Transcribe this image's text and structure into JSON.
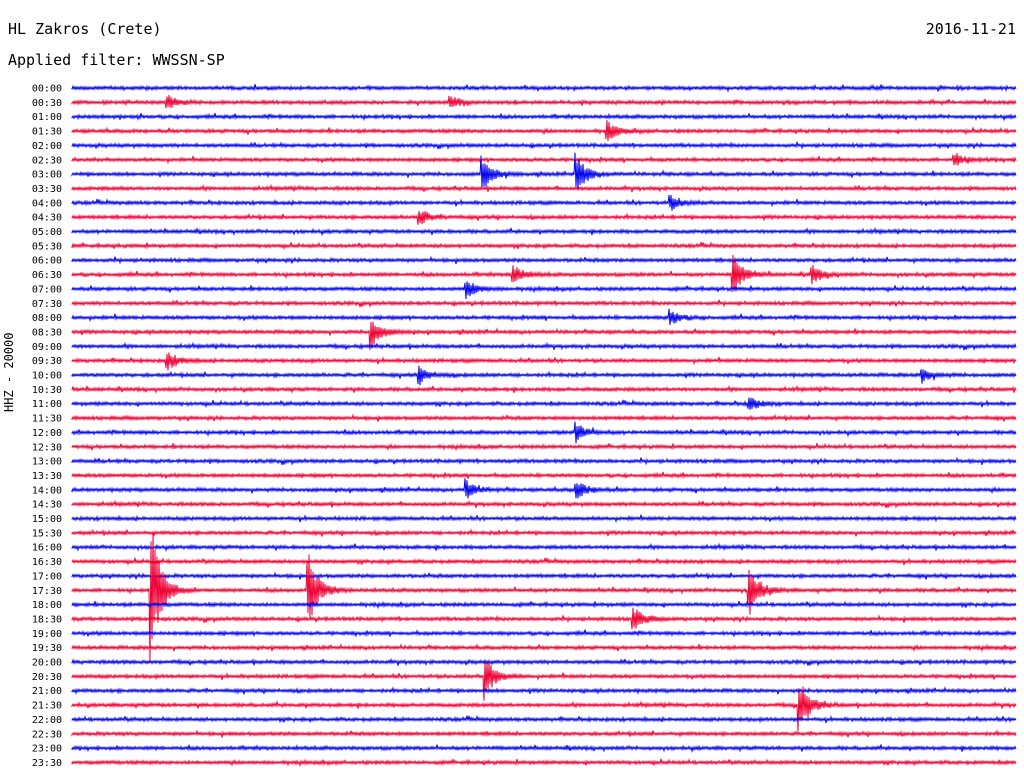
{
  "header": {
    "station": "HL Zakros (Crete)",
    "date": "2016-11-21",
    "filter": "Applied filter: WWSSN-SP"
  },
  "channel_label": "HHZ - 20000",
  "colors": {
    "even_line": "#0000ee",
    "odd_line": "#ee0033",
    "label": "#000000"
  },
  "chart_data": {
    "type": "line",
    "title": "HL Zakros (Crete)",
    "subtitle": "Applied filter: WWSSN-SP",
    "ylabel": "HHZ - 20000",
    "xlabel": "",
    "grid": false,
    "row_labels": [
      "00:00",
      "00:30",
      "01:00",
      "01:30",
      "02:00",
      "02:30",
      "03:00",
      "03:30",
      "04:00",
      "04:30",
      "05:00",
      "05:30",
      "06:00",
      "06:30",
      "07:00",
      "07:30",
      "08:00",
      "08:30",
      "09:00",
      "09:30",
      "10:00",
      "10:30",
      "11:00",
      "11:30",
      "12:00",
      "12:30",
      "13:00",
      "13:30",
      "14:00",
      "14:30",
      "15:00",
      "15:30",
      "16:00",
      "16:30",
      "17:00",
      "17:30",
      "18:00",
      "18:30",
      "19:00",
      "19:30",
      "20:00",
      "20:30",
      "21:00",
      "21:30",
      "22:00",
      "22:30",
      "23:00",
      "23:30"
    ],
    "row_minutes": 30,
    "events": [
      {
        "row": "00:30",
        "minute": 3,
        "amp": 0.6
      },
      {
        "row": "00:30",
        "minute": 12,
        "amp": 0.6
      },
      {
        "row": "01:30",
        "minute": 17,
        "amp": 0.8
      },
      {
        "row": "02:30",
        "minute": 28,
        "amp": 0.6
      },
      {
        "row": "03:00",
        "minute": 13,
        "amp": 1.5
      },
      {
        "row": "03:00",
        "minute": 16,
        "amp": 1.7
      },
      {
        "row": "04:00",
        "minute": 19,
        "amp": 0.6
      },
      {
        "row": "04:30",
        "minute": 11,
        "amp": 0.7
      },
      {
        "row": "06:30",
        "minute": 14,
        "amp": 0.8
      },
      {
        "row": "06:30",
        "minute": 21,
        "amp": 1.6
      },
      {
        "row": "06:30",
        "minute": 23.5,
        "amp": 0.7
      },
      {
        "row": "07:00",
        "minute": 12.5,
        "amp": 0.8
      },
      {
        "row": "08:00",
        "minute": 19,
        "amp": 0.6
      },
      {
        "row": "08:30",
        "minute": 9.5,
        "amp": 1.3
      },
      {
        "row": "09:30",
        "minute": 3,
        "amp": 0.8
      },
      {
        "row": "10:00",
        "minute": 11,
        "amp": 0.7
      },
      {
        "row": "10:00",
        "minute": 27,
        "amp": 0.6
      },
      {
        "row": "11:00",
        "minute": 21.5,
        "amp": 0.6
      },
      {
        "row": "12:00",
        "minute": 16,
        "amp": 0.8
      },
      {
        "row": "14:00",
        "minute": 12.5,
        "amp": 0.8
      },
      {
        "row": "14:00",
        "minute": 16,
        "amp": 0.8
      },
      {
        "row": "17:30",
        "minute": 2.5,
        "amp": 6.0
      },
      {
        "row": "17:30",
        "minute": 7.5,
        "amp": 3.0
      },
      {
        "row": "17:30",
        "minute": 21.5,
        "amp": 2.2
      },
      {
        "row": "18:30",
        "minute": 17.8,
        "amp": 1.1
      },
      {
        "row": "20:30",
        "minute": 13.1,
        "amp": 1.8
      },
      {
        "row": "21:30",
        "minute": 23.1,
        "amp": 2.2
      }
    ]
  }
}
